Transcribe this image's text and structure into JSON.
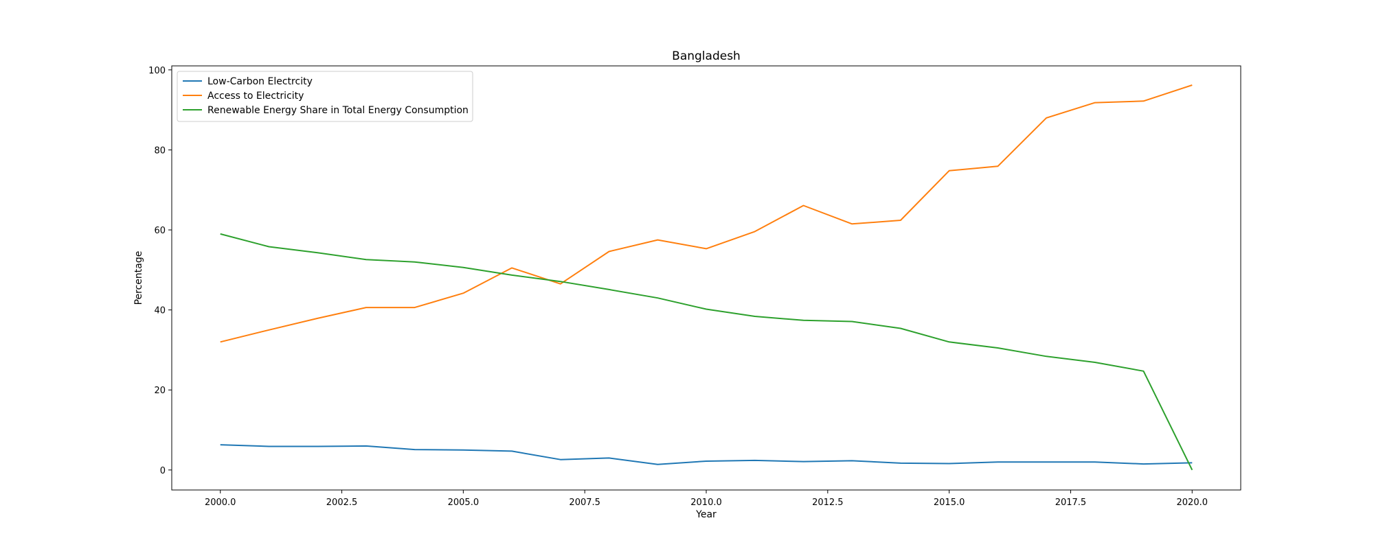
{
  "chart_data": {
    "type": "line",
    "title": "Bangladesh",
    "xlabel": "Year",
    "ylabel": "Percentage",
    "xlim": [
      1999,
      2021
    ],
    "ylim": [
      -5,
      101
    ],
    "xticks": [
      2000.0,
      2002.5,
      2005.0,
      2007.5,
      2010.0,
      2012.5,
      2015.0,
      2017.5,
      2020.0
    ],
    "xtick_labels": [
      "2000.0",
      "2002.5",
      "2005.0",
      "2007.5",
      "2010.0",
      "2012.5",
      "2015.0",
      "2017.5",
      "2020.0"
    ],
    "yticks": [
      0,
      20,
      40,
      60,
      80,
      100
    ],
    "ytick_labels": [
      "0",
      "20",
      "40",
      "60",
      "80",
      "100"
    ],
    "grid": false,
    "legend_position": "top-left",
    "x": [
      2000,
      2001,
      2002,
      2003,
      2004,
      2005,
      2006,
      2007,
      2008,
      2009,
      2010,
      2011,
      2012,
      2013,
      2014,
      2015,
      2016,
      2017,
      2018,
      2019,
      2020
    ],
    "series": [
      {
        "name": "Low-Carbon Electrcity",
        "color": "#1f77b4",
        "values": [
          6.3,
          5.9,
          5.9,
          6.0,
          5.1,
          5.0,
          4.7,
          2.6,
          3.0,
          1.4,
          2.2,
          2.4,
          2.1,
          2.3,
          1.7,
          1.6,
          2.0,
          2.0,
          2.0,
          1.5,
          1.8
        ]
      },
      {
        "name": "Access to Electricity",
        "color": "#ff7f0e",
        "values": [
          32.0,
          35.0,
          37.9,
          40.6,
          40.6,
          44.2,
          50.5,
          46.5,
          54.6,
          57.5,
          55.3,
          59.6,
          66.1,
          61.5,
          62.4,
          74.8,
          75.9,
          88.0,
          91.8,
          92.2,
          96.2
        ]
      },
      {
        "name": "Renewable Energy Share in Total Energy Consumption",
        "color": "#2ca02c",
        "values": [
          59.0,
          55.8,
          54.3,
          52.6,
          52.0,
          50.6,
          48.7,
          47.1,
          45.1,
          43.0,
          40.2,
          38.4,
          37.4,
          37.1,
          35.4,
          32.0,
          30.5,
          28.4,
          26.9,
          24.7,
          0.0
        ]
      }
    ]
  }
}
